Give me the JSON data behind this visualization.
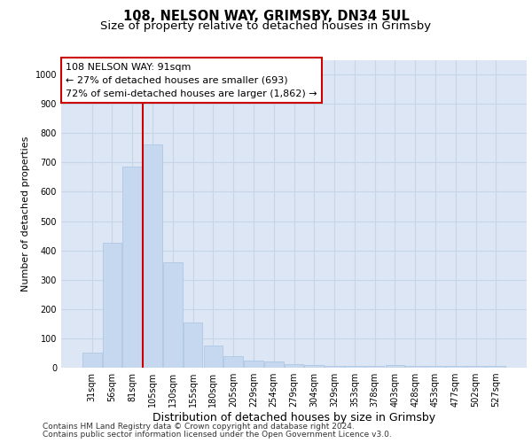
{
  "title1": "108, NELSON WAY, GRIMSBY, DN34 5UL",
  "title2": "Size of property relative to detached houses in Grimsby",
  "xlabel": "Distribution of detached houses by size in Grimsby",
  "ylabel": "Number of detached properties",
  "categories": [
    "31sqm",
    "56sqm",
    "81sqm",
    "105sqm",
    "130sqm",
    "155sqm",
    "180sqm",
    "205sqm",
    "229sqm",
    "254sqm",
    "279sqm",
    "304sqm",
    "329sqm",
    "353sqm",
    "378sqm",
    "403sqm",
    "428sqm",
    "453sqm",
    "477sqm",
    "502sqm",
    "527sqm"
  ],
  "values": [
    50,
    425,
    685,
    760,
    360,
    155,
    75,
    38,
    25,
    20,
    12,
    8,
    5,
    5,
    5,
    8,
    5,
    5,
    5,
    5,
    5
  ],
  "bar_color": "#c5d8f0",
  "bar_edge_color": "#a8c4e0",
  "vline_x": 2.5,
  "vline_color": "#cc0000",
  "annotation_box_text": "108 NELSON WAY: 91sqm\n← 27% of detached houses are smaller (693)\n72% of semi-detached houses are larger (1,862) →",
  "annotation_box_color": "#ffffff",
  "annotation_box_edge_color": "#cc0000",
  "grid_color": "#c8d4e8",
  "bg_color": "#dce6f5",
  "ylim": [
    0,
    1050
  ],
  "yticks": [
    0,
    100,
    200,
    300,
    400,
    500,
    600,
    700,
    800,
    900,
    1000
  ],
  "footer1": "Contains HM Land Registry data © Crown copyright and database right 2024.",
  "footer2": "Contains public sector information licensed under the Open Government Licence v3.0.",
  "title_fontsize": 10.5,
  "subtitle_fontsize": 9.5,
  "tick_fontsize": 7,
  "ylabel_fontsize": 8,
  "xlabel_fontsize": 9,
  "annotation_fontsize": 8,
  "footer_fontsize": 6.5
}
